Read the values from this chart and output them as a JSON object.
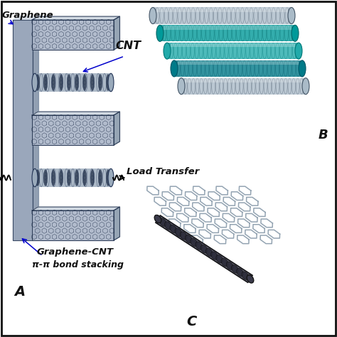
{
  "background_color": "#ffffff",
  "border_color": "#111111",
  "labels": {
    "graphene": "Graphene",
    "cnt": "CNT",
    "load_transfer": "Load Transfer",
    "graphene_cnt": "Graphene-CNT",
    "pi_bond": "π-π bond stacking",
    "panel_A": "A",
    "panel_B": "B",
    "panel_C": "C"
  },
  "label_color": "#111111",
  "arrow_color": "#0000cc",
  "label_style": "italic",
  "label_fontsize": 9.5,
  "panel_label_fontsize": 13,
  "fig_width": 4.74,
  "fig_height": 4.74,
  "dpi": 100,
  "plate_color_front": "#aab5c8",
  "plate_color_top": "#ccd5e0",
  "plate_color_right": "#8899ab",
  "plate_edge": "#2a3a55",
  "hex_color": "#1a2a45",
  "spine_color": "#8898b0",
  "cnt_body": "#9aaabb",
  "cnt_dark": "#223355",
  "teal1": "#009999",
  "teal2": "#007788",
  "teal3": "#22aaaa",
  "bundle_gray": "#aabbcc",
  "hex_sheet_color": "#889aaa",
  "cnt_dark_body": "#333344"
}
